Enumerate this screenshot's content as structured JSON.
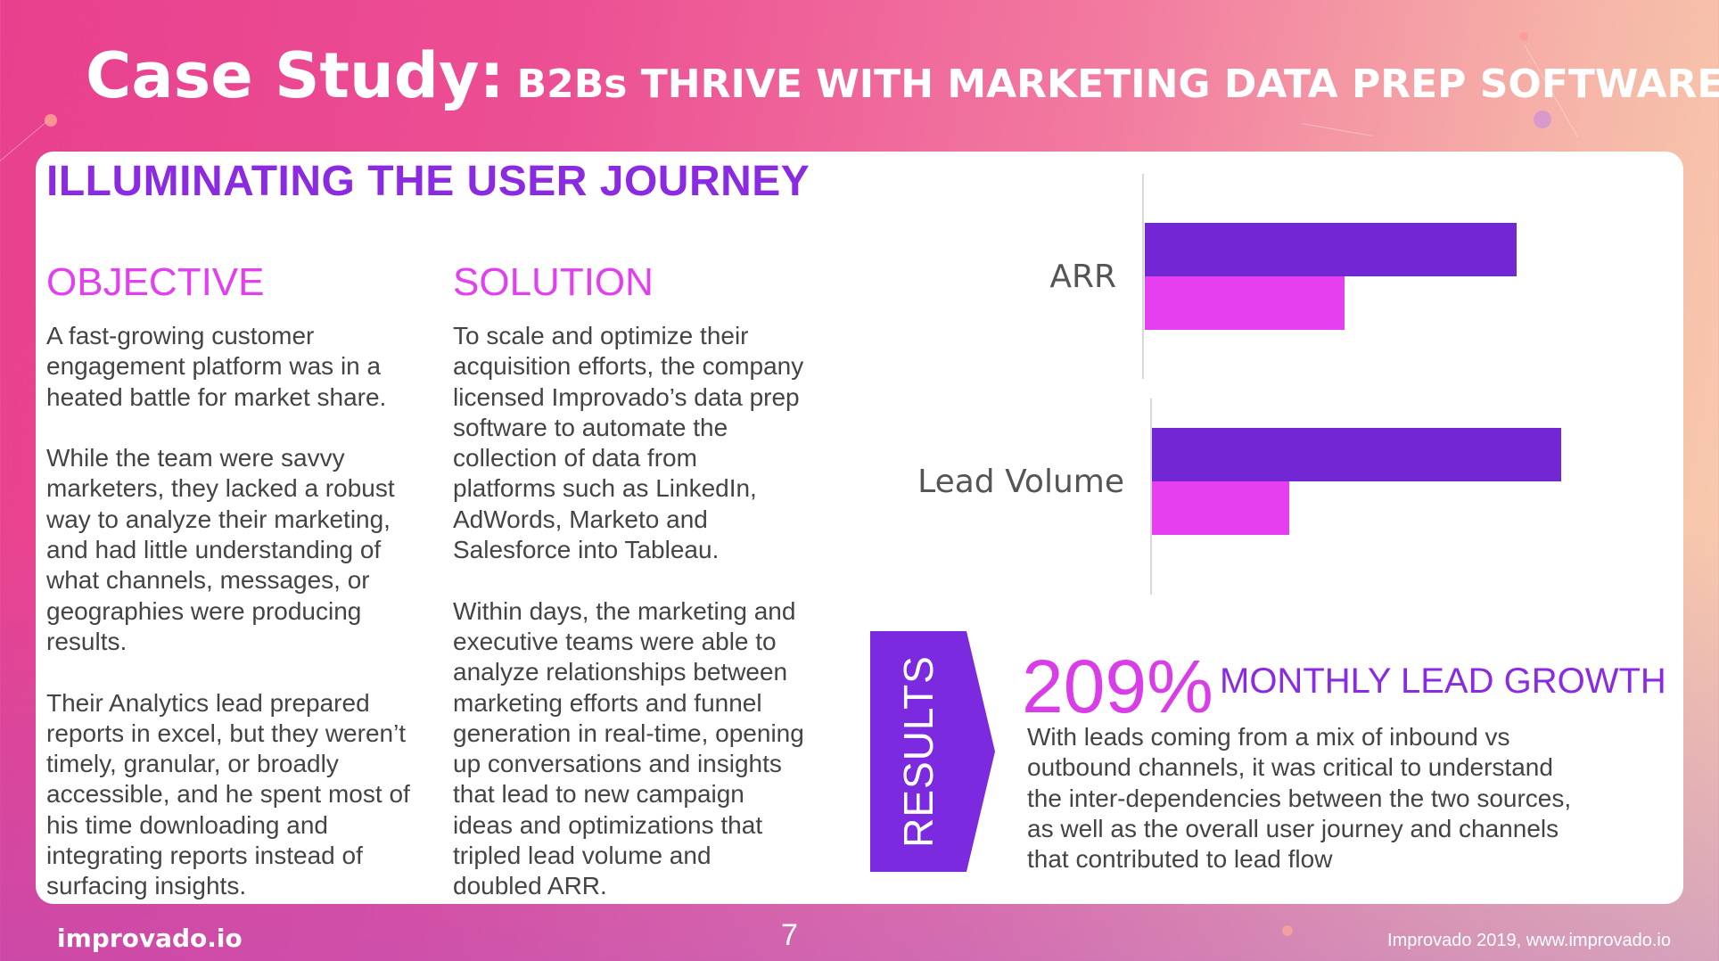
{
  "slide": {
    "title_main": "Case Study:",
    "title_sub": "B2Bs THRIVE WITH MARKETING DATA PREP SOFTWARE",
    "heading": "ILLUMINATING THE USER JOURNEY",
    "objective": {
      "title": "OBJECTIVE",
      "text": "A fast-growing customer\nengagement platform was in a\nheated battle for market share.\n\nWhile the team were savvy\nmarketers, they lacked a robust\nway to analyze their marketing,\nand had little understanding of\nwhat channels, messages, or\ngeographies were producing\nresults.\n\nTheir Analytics lead prepared\nreports in excel, but they weren’t\ntimely, granular, or broadly\naccessible, and he spent most of\nhis time downloading and\nintegrating reports instead of\nsurfacing insights."
    },
    "solution": {
      "title": "SOLUTION",
      "text": "To scale and optimize their\nacquisition efforts, the company\nlicensed Improvado’s data prep\nsoftware to automate the\ncollection of data from\nplatforms such as LinkedIn,\nAdWords, Marketo and\nSalesforce into Tableau.\n\nWithin days, the marketing and\nexecutive teams were able to\nanalyze relationships between\nmarketing efforts and funnel\ngeneration in real-time, opening\nup conversations and insights\nthat lead to new campaign\nideas and optimizations that\ntripled lead volume and\ndoubled ARR."
    },
    "results": {
      "tab_label": "RESULTS",
      "percent": "209%",
      "percent_label": "MONTHLY LEAD GROWTH",
      "text": "With leads coming from a mix of inbound vs\noutbound channels, it was critical to understand\nthe inter-dependencies between the two sources,\nas well as the overall user journey and channels\nthat contributed to lead flow"
    },
    "footer": {
      "logo": "improvado.io",
      "page_number": "7",
      "copyright": "Improvado 2019, www.improvado.io"
    },
    "colors": {
      "purple": "#7327d4",
      "magenta": "#e53ff0",
      "heading_purple": "#8a2be2"
    }
  },
  "chart_data": {
    "type": "bar",
    "orientation": "horizontal",
    "categories": [
      "ARR",
      "Lead Volume"
    ],
    "series": [
      {
        "values": [
          2,
          3
        ],
        "color": "#7327d4"
      },
      {
        "values": [
          1,
          1
        ],
        "color": "#e53ff0"
      }
    ],
    "title": "",
    "xlabel": "",
    "ylabel": "",
    "grid": false
  }
}
